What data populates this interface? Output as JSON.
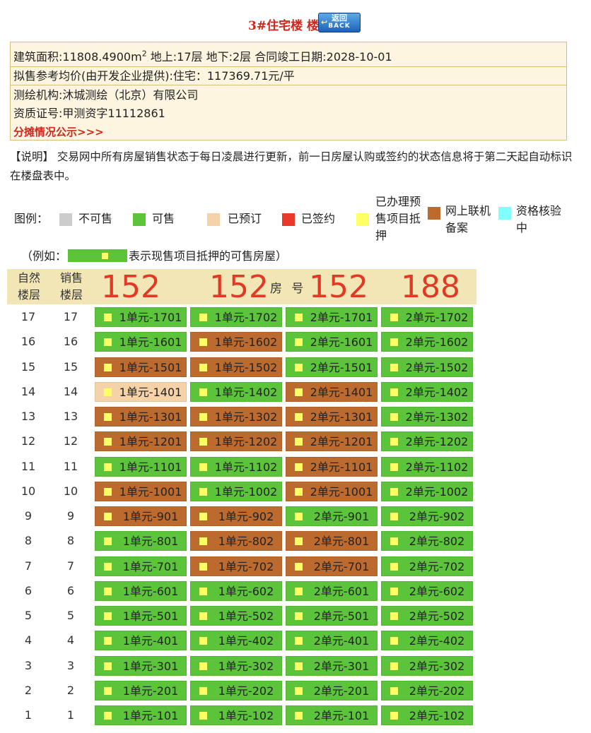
{
  "title": "3#住宅楼 楼盘表",
  "back_button": {
    "line1": "返回",
    "line2": "BACK"
  },
  "info": {
    "area_label": "建筑面积:11808.4900m",
    "area_sup": "2",
    "area_rest": " 地上:17层  地下:2层  合同竣工日期:2028-10-01",
    "price": "拟售参考均价(由开发企业提供):住宅：117369.71元/平",
    "survey_org": "测绘机构:沐城测绘（北京）有限公司",
    "cert_no": "资质证号:甲测资字11112861",
    "share_link": "分摊情况公示>>>"
  },
  "note": "【说明】 交易网中所有房屋销售状态于每日凌晨进行更新，前一日房屋认购或签约的状态信息将于第二天起自动标识在楼盘表中。",
  "legend": {
    "label": "图例：",
    "items": [
      {
        "label": "不可售",
        "color": "#cccccc"
      },
      {
        "label": "可售",
        "color": "#5bc43a"
      },
      {
        "label": "已预订",
        "color": "#f5d2a8"
      },
      {
        "label": "已签约",
        "color": "#e8392a"
      },
      {
        "label": "已办理预售项目抵押",
        "color": "#ffff66"
      },
      {
        "label": "网上联机备案",
        "color": "#bd6a2f"
      },
      {
        "label": "资格核验中",
        "color": "#7fffff"
      }
    ]
  },
  "example": {
    "prefix": "（例如：",
    "suffix": "表示现售项目抵押的可售房屋）"
  },
  "table": {
    "col_natural_floor": "自然楼层",
    "col_sale_floor": "销售楼层",
    "counts": [
      "152",
      "152",
      "152",
      "188"
    ],
    "room_no_label": "房 号",
    "colors": {
      "green": "#5bc43a",
      "brown": "#bd6a2f",
      "peach": "#f5d2a8"
    },
    "rows": [
      {
        "floor": "17",
        "sale": "17",
        "rooms": [
          {
            "name": "1单元-1701",
            "status": "green"
          },
          {
            "name": "1单元-1702",
            "status": "green"
          },
          {
            "name": "2单元-1701",
            "status": "green"
          },
          {
            "name": "2单元-1702",
            "status": "green"
          }
        ]
      },
      {
        "floor": "16",
        "sale": "16",
        "rooms": [
          {
            "name": "1单元-1601",
            "status": "green"
          },
          {
            "name": "1单元-1602",
            "status": "brown"
          },
          {
            "name": "2单元-1601",
            "status": "green"
          },
          {
            "name": "2单元-1602",
            "status": "green"
          }
        ]
      },
      {
        "floor": "15",
        "sale": "15",
        "rooms": [
          {
            "name": "1单元-1501",
            "status": "brown"
          },
          {
            "name": "1单元-1502",
            "status": "brown"
          },
          {
            "name": "2单元-1501",
            "status": "green"
          },
          {
            "name": "2单元-1502",
            "status": "green"
          }
        ]
      },
      {
        "floor": "14",
        "sale": "14",
        "rooms": [
          {
            "name": "1单元-1401",
            "status": "peach"
          },
          {
            "name": "1单元-1402",
            "status": "green"
          },
          {
            "name": "2单元-1401",
            "status": "brown"
          },
          {
            "name": "2单元-1402",
            "status": "green"
          }
        ]
      },
      {
        "floor": "13",
        "sale": "13",
        "rooms": [
          {
            "name": "1单元-1301",
            "status": "brown"
          },
          {
            "name": "1单元-1302",
            "status": "brown"
          },
          {
            "name": "2单元-1301",
            "status": "brown"
          },
          {
            "name": "2单元-1302",
            "status": "green"
          }
        ]
      },
      {
        "floor": "12",
        "sale": "12",
        "rooms": [
          {
            "name": "1单元-1201",
            "status": "brown"
          },
          {
            "name": "1单元-1202",
            "status": "brown"
          },
          {
            "name": "2单元-1201",
            "status": "brown"
          },
          {
            "name": "2单元-1202",
            "status": "green"
          }
        ]
      },
      {
        "floor": "11",
        "sale": "11",
        "rooms": [
          {
            "name": "1单元-1101",
            "status": "green"
          },
          {
            "name": "1单元-1102",
            "status": "green"
          },
          {
            "name": "2单元-1101",
            "status": "brown"
          },
          {
            "name": "2单元-1102",
            "status": "green"
          }
        ]
      },
      {
        "floor": "10",
        "sale": "10",
        "rooms": [
          {
            "name": "1单元-1001",
            "status": "brown"
          },
          {
            "name": "1单元-1002",
            "status": "green"
          },
          {
            "name": "2单元-1001",
            "status": "brown"
          },
          {
            "name": "2单元-1002",
            "status": "green"
          }
        ]
      },
      {
        "floor": "9",
        "sale": "9",
        "rooms": [
          {
            "name": "1单元-901",
            "status": "brown"
          },
          {
            "name": "1单元-902",
            "status": "brown"
          },
          {
            "name": "2单元-901",
            "status": "green"
          },
          {
            "name": "2单元-902",
            "status": "green"
          }
        ]
      },
      {
        "floor": "8",
        "sale": "8",
        "rooms": [
          {
            "name": "1单元-801",
            "status": "green"
          },
          {
            "name": "1单元-802",
            "status": "brown"
          },
          {
            "name": "2单元-801",
            "status": "brown"
          },
          {
            "name": "2单元-802",
            "status": "green"
          }
        ]
      },
      {
        "floor": "7",
        "sale": "7",
        "rooms": [
          {
            "name": "1单元-701",
            "status": "green"
          },
          {
            "name": "1单元-702",
            "status": "brown"
          },
          {
            "name": "2单元-701",
            "status": "brown"
          },
          {
            "name": "2单元-702",
            "status": "green"
          }
        ]
      },
      {
        "floor": "6",
        "sale": "6",
        "rooms": [
          {
            "name": "1单元-601",
            "status": "green"
          },
          {
            "name": "1单元-602",
            "status": "green"
          },
          {
            "name": "2单元-601",
            "status": "green"
          },
          {
            "name": "2单元-602",
            "status": "green"
          }
        ]
      },
      {
        "floor": "5",
        "sale": "5",
        "rooms": [
          {
            "name": "1单元-501",
            "status": "green"
          },
          {
            "name": "1单元-502",
            "status": "green"
          },
          {
            "name": "2单元-501",
            "status": "green"
          },
          {
            "name": "2单元-502",
            "status": "green"
          }
        ]
      },
      {
        "floor": "4",
        "sale": "4",
        "rooms": [
          {
            "name": "1单元-401",
            "status": "green"
          },
          {
            "name": "1单元-402",
            "status": "green"
          },
          {
            "name": "2单元-401",
            "status": "green"
          },
          {
            "name": "2单元-402",
            "status": "green"
          }
        ]
      },
      {
        "floor": "3",
        "sale": "3",
        "rooms": [
          {
            "name": "1单元-301",
            "status": "green"
          },
          {
            "name": "1单元-302",
            "status": "green"
          },
          {
            "name": "2单元-301",
            "status": "green"
          },
          {
            "name": "2单元-302",
            "status": "green"
          }
        ]
      },
      {
        "floor": "2",
        "sale": "2",
        "rooms": [
          {
            "name": "1单元-201",
            "status": "green"
          },
          {
            "name": "1单元-202",
            "status": "green"
          },
          {
            "name": "2单元-201",
            "status": "green"
          },
          {
            "name": "2单元-202",
            "status": "green"
          }
        ]
      },
      {
        "floor": "1",
        "sale": "1",
        "rooms": [
          {
            "name": "1单元-101",
            "status": "green"
          },
          {
            "name": "1单元-102",
            "status": "green"
          },
          {
            "name": "2单元-101",
            "status": "green"
          },
          {
            "name": "2单元-102",
            "status": "green"
          }
        ]
      }
    ]
  }
}
